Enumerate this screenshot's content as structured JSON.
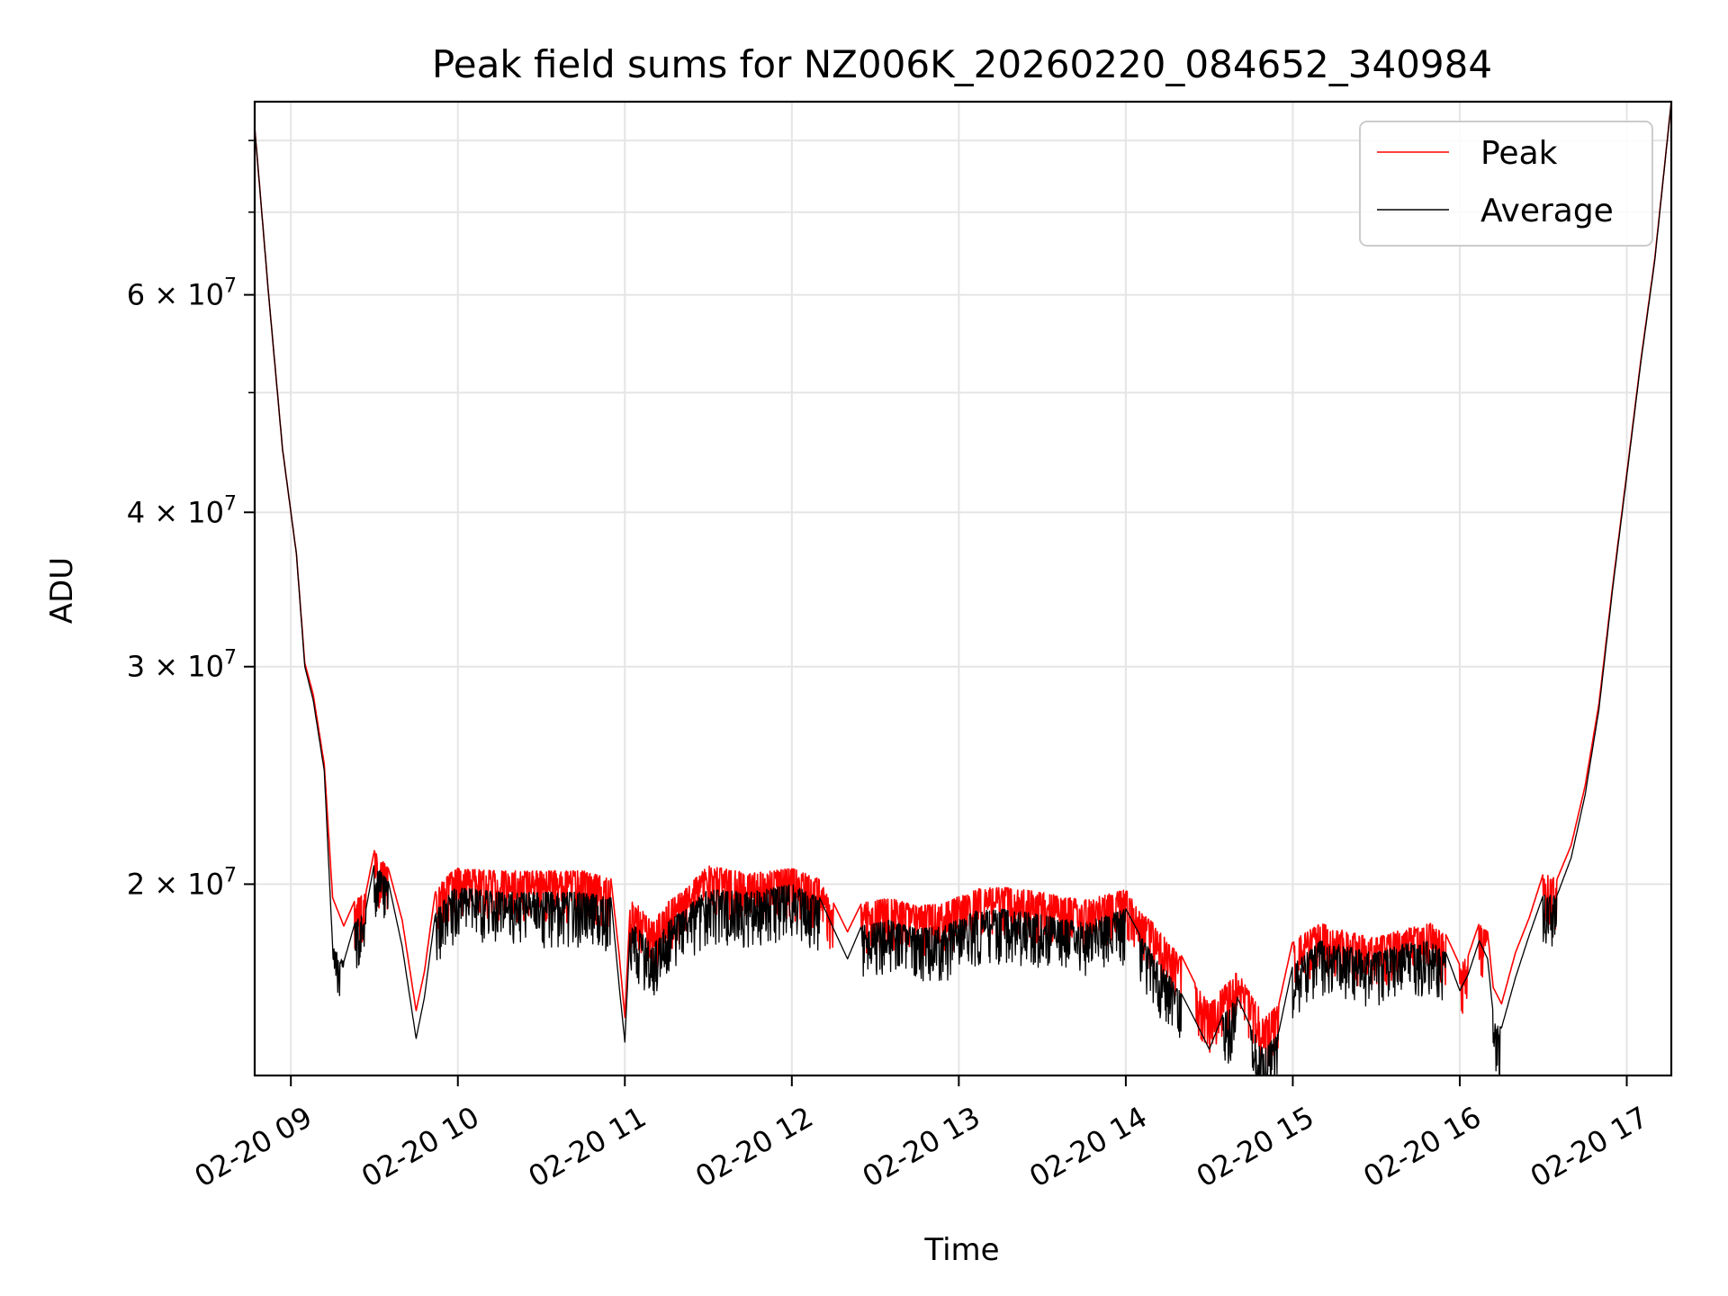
{
  "chart_data": {
    "type": "line",
    "title": "Peak field sums for NZ006K_20260220_084652_340984",
    "xlabel": "Time",
    "ylabel": "ADU",
    "x_scale": "time",
    "y_scale": "log",
    "xlim": [
      "2026-02-20 08:47",
      "2026-02-20 17:16"
    ],
    "ylim": [
      14000000,
      86000000
    ],
    "x_ticks": [
      {
        "value": "2026-02-20 09:00",
        "label": "02-20 09"
      },
      {
        "value": "2026-02-20 10:00",
        "label": "02-20 10"
      },
      {
        "value": "2026-02-20 11:00",
        "label": "02-20 11"
      },
      {
        "value": "2026-02-20 12:00",
        "label": "02-20 12"
      },
      {
        "value": "2026-02-20 13:00",
        "label": "02-20 13"
      },
      {
        "value": "2026-02-20 14:00",
        "label": "02-20 14"
      },
      {
        "value": "2026-02-20 15:00",
        "label": "02-20 15"
      },
      {
        "value": "2026-02-20 16:00",
        "label": "02-20 16"
      },
      {
        "value": "2026-02-20 17:00",
        "label": "02-20 17"
      }
    ],
    "y_major_ticks": [
      {
        "value": 20000000,
        "mantissa": "2",
        "label": "2 × 10^7"
      },
      {
        "value": 30000000,
        "mantissa": "3",
        "label": "3 × 10^7"
      },
      {
        "value": 40000000,
        "mantissa": "4",
        "label": "4 × 10^7"
      },
      {
        "value": 60000000,
        "mantissa": "6",
        "label": "6 × 10^7"
      }
    ],
    "y_minor_ticks": [
      50000000,
      70000000,
      80000000
    ],
    "grid": true,
    "legend": {
      "position": "top-right"
    },
    "series": [
      {
        "name": "Peak",
        "color": "#ff0000",
        "x": [
          "2026-02-20 08:47",
          "2026-02-20 08:52",
          "2026-02-20 08:57",
          "2026-02-20 09:02",
          "2026-02-20 09:05",
          "2026-02-20 09:08",
          "2026-02-20 09:12",
          "2026-02-20 09:15",
          "2026-02-20 09:19",
          "2026-02-20 09:23",
          "2026-02-20 09:27",
          "2026-02-20 09:30",
          "2026-02-20 09:35",
          "2026-02-20 09:40",
          "2026-02-20 09:45",
          "2026-02-20 09:48",
          "2026-02-20 09:52",
          "2026-02-20 09:57",
          "2026-02-20 10:00",
          "2026-02-20 10:15",
          "2026-02-20 10:30",
          "2026-02-20 10:45",
          "2026-02-20 10:55",
          "2026-02-20 10:58",
          "2026-02-20 11:00",
          "2026-02-20 11:02",
          "2026-02-20 11:05",
          "2026-02-20 11:10",
          "2026-02-20 11:15",
          "2026-02-20 11:20",
          "2026-02-20 11:30",
          "2026-02-20 11:45",
          "2026-02-20 12:00",
          "2026-02-20 12:10",
          "2026-02-20 12:15",
          "2026-02-20 12:20",
          "2026-02-20 12:25",
          "2026-02-20 12:35",
          "2026-02-20 12:45",
          "2026-02-20 12:55",
          "2026-02-20 13:05",
          "2026-02-20 13:15",
          "2026-02-20 13:30",
          "2026-02-20 13:45",
          "2026-02-20 14:00",
          "2026-02-20 14:05",
          "2026-02-20 14:10",
          "2026-02-20 14:15",
          "2026-02-20 14:20",
          "2026-02-20 14:25",
          "2026-02-20 14:30",
          "2026-02-20 14:35",
          "2026-02-20 14:40",
          "2026-02-20 14:45",
          "2026-02-20 14:50",
          "2026-02-20 14:55",
          "2026-02-20 15:00",
          "2026-02-20 15:10",
          "2026-02-20 15:20",
          "2026-02-20 15:30",
          "2026-02-20 15:40",
          "2026-02-20 15:50",
          "2026-02-20 15:55",
          "2026-02-20 16:00",
          "2026-02-20 16:03",
          "2026-02-20 16:07",
          "2026-02-20 16:10",
          "2026-02-20 16:12",
          "2026-02-20 16:15",
          "2026-02-20 16:20",
          "2026-02-20 16:25",
          "2026-02-20 16:30",
          "2026-02-20 16:35",
          "2026-02-20 16:40",
          "2026-02-20 16:45",
          "2026-02-20 16:50",
          "2026-02-20 16:55",
          "2026-02-20 17:00",
          "2026-02-20 17:05",
          "2026-02-20 17:10",
          "2026-02-20 17:16"
        ],
        "values": [
          82000000,
          60000000,
          45000000,
          37000000,
          30200000,
          28500000,
          25000000,
          19500000,
          18500000,
          19400000,
          19700000,
          21300000,
          20600000,
          18700000,
          15800000,
          17000000,
          19800000,
          20400000,
          20600000,
          20500000,
          20500000,
          20500000,
          20200000,
          17500000,
          15600000,
          19400000,
          19200000,
          18600000,
          19300000,
          19700000,
          20700000,
          20400000,
          20600000,
          20200000,
          19300000,
          18300000,
          19300000,
          19500000,
          19200000,
          19300000,
          19800000,
          19900000,
          19700000,
          19400000,
          19800000,
          19000000,
          18600000,
          18000000,
          17500000,
          16600000,
          16000000,
          16500000,
          17000000,
          16300000,
          15600000,
          16000000,
          18000000,
          18600000,
          18300000,
          18100000,
          18400000,
          18600000,
          18200000,
          17200000,
          17500000,
          18600000,
          18300000,
          16500000,
          16000000,
          17600000,
          18800000,
          20400000,
          20200000,
          21500000,
          24000000,
          28000000,
          35000000,
          43000000,
          53000000,
          64000000,
          86000000
        ]
      },
      {
        "name": "Average",
        "color": "#000000",
        "x": [
          "2026-02-20 08:47",
          "2026-02-20 08:52",
          "2026-02-20 08:57",
          "2026-02-20 09:02",
          "2026-02-20 09:05",
          "2026-02-20 09:08",
          "2026-02-20 09:12",
          "2026-02-20 09:15",
          "2026-02-20 09:19",
          "2026-02-20 09:23",
          "2026-02-20 09:27",
          "2026-02-20 09:30",
          "2026-02-20 09:35",
          "2026-02-20 09:40",
          "2026-02-20 09:45",
          "2026-02-20 09:48",
          "2026-02-20 09:52",
          "2026-02-20 09:57",
          "2026-02-20 10:00",
          "2026-02-20 10:15",
          "2026-02-20 10:30",
          "2026-02-20 10:45",
          "2026-02-20 10:55",
          "2026-02-20 10:58",
          "2026-02-20 11:00",
          "2026-02-20 11:02",
          "2026-02-20 11:05",
          "2026-02-20 11:10",
          "2026-02-20 11:15",
          "2026-02-20 11:20",
          "2026-02-20 11:30",
          "2026-02-20 11:45",
          "2026-02-20 12:00",
          "2026-02-20 12:10",
          "2026-02-20 12:15",
          "2026-02-20 12:20",
          "2026-02-20 12:25",
          "2026-02-20 12:35",
          "2026-02-20 12:45",
          "2026-02-20 12:55",
          "2026-02-20 13:05",
          "2026-02-20 13:15",
          "2026-02-20 13:30",
          "2026-02-20 13:45",
          "2026-02-20 14:00",
          "2026-02-20 14:05",
          "2026-02-20 14:10",
          "2026-02-20 14:15",
          "2026-02-20 14:20",
          "2026-02-20 14:25",
          "2026-02-20 14:30",
          "2026-02-20 14:35",
          "2026-02-20 14:40",
          "2026-02-20 14:45",
          "2026-02-20 14:50",
          "2026-02-20 14:55",
          "2026-02-20 15:00",
          "2026-02-20 15:10",
          "2026-02-20 15:20",
          "2026-02-20 15:30",
          "2026-02-20 15:40",
          "2026-02-20 15:50",
          "2026-02-20 15:55",
          "2026-02-20 16:00",
          "2026-02-20 16:03",
          "2026-02-20 16:07",
          "2026-02-20 16:10",
          "2026-02-20 16:12",
          "2026-02-20 16:15",
          "2026-02-20 16:20",
          "2026-02-20 16:25",
          "2026-02-20 16:30",
          "2026-02-20 16:35",
          "2026-02-20 16:40",
          "2026-02-20 16:45",
          "2026-02-20 16:50",
          "2026-02-20 16:55",
          "2026-02-20 17:00",
          "2026-02-20 17:05",
          "2026-02-20 17:10",
          "2026-02-20 17:16"
        ],
        "values": [
          82000000,
          60000000,
          45000000,
          37000000,
          30000000,
          28200000,
          24700000,
          17800000,
          17300000,
          18600000,
          19100000,
          20800000,
          20100000,
          17800000,
          15000000,
          16200000,
          19000000,
          19700000,
          19900000,
          19700000,
          19700000,
          19700000,
          19500000,
          16500000,
          14900000,
          18600000,
          18400000,
          17800000,
          18600000,
          19000000,
          19800000,
          19700000,
          20000000,
          19500000,
          18400000,
          17400000,
          18500000,
          18700000,
          18400000,
          18500000,
          19000000,
          19100000,
          18900000,
          18600000,
          19100000,
          18200000,
          17500000,
          17000000,
          16300000,
          15500000,
          14700000,
          15700000,
          16200000,
          15300000,
          14700000,
          15200000,
          17200000,
          18000000,
          17800000,
          17600000,
          17900000,
          18000000,
          17600000,
          16400000,
          16900000,
          18000000,
          17400000,
          15700000,
          15300000,
          16800000,
          18200000,
          19600000,
          19600000,
          21000000,
          23600000,
          27700000,
          34800000,
          42800000,
          52800000,
          63800000,
          86000000
        ]
      }
    ]
  }
}
